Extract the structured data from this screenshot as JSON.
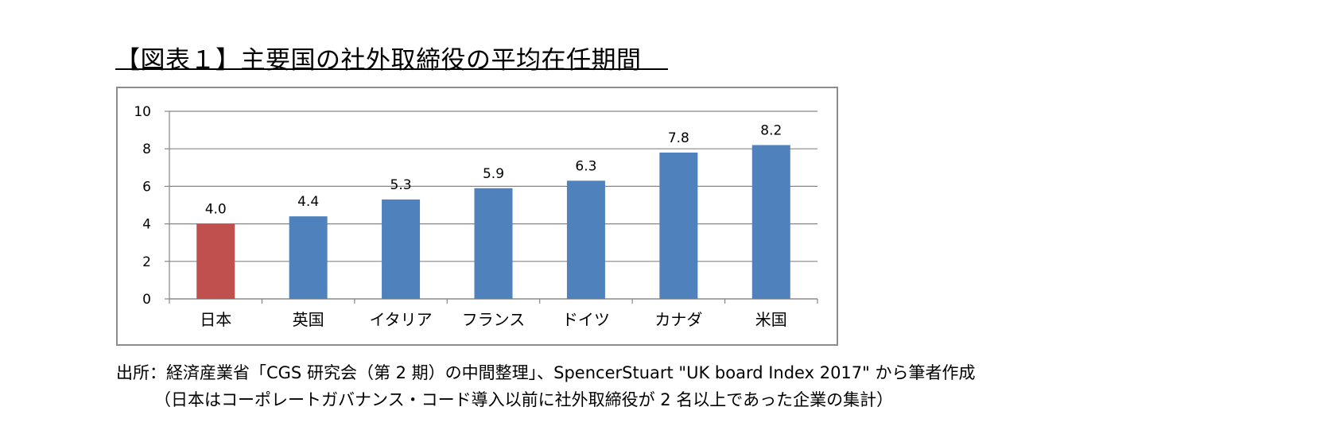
{
  "title": "【図表１】主要国の社外取締役の平均在任期間",
  "source": {
    "line1": "出所：経済産業省「CGS 研究会（第 2 期）の中間整理」、SpencerStuart \"UK board Index 2017\" から筆者作成",
    "line2": "（日本はコーポレートガバナンス・コード導入以前に社外取締役が 2 名以上であった企業の集計）"
  },
  "colors": {
    "default_bar": "#4f81bd",
    "highlight_bar": "#c0504d",
    "gridline": "#868686"
  },
  "chart_data": {
    "type": "bar",
    "categories": [
      "日本",
      "英国",
      "イタリア",
      "フランス",
      "ドイツ",
      "カナダ",
      "米国"
    ],
    "values": [
      4.0,
      4.4,
      5.3,
      5.9,
      6.3,
      7.8,
      8.2
    ],
    "data_labels": [
      "4.0",
      "4.4",
      "5.3",
      "5.9",
      "6.3",
      "7.8",
      "8.2"
    ],
    "highlight_index": 0,
    "ylim": [
      0,
      10
    ],
    "yticks": [
      0,
      2,
      4,
      6,
      8,
      10
    ],
    "grid": true,
    "legend": "none"
  }
}
